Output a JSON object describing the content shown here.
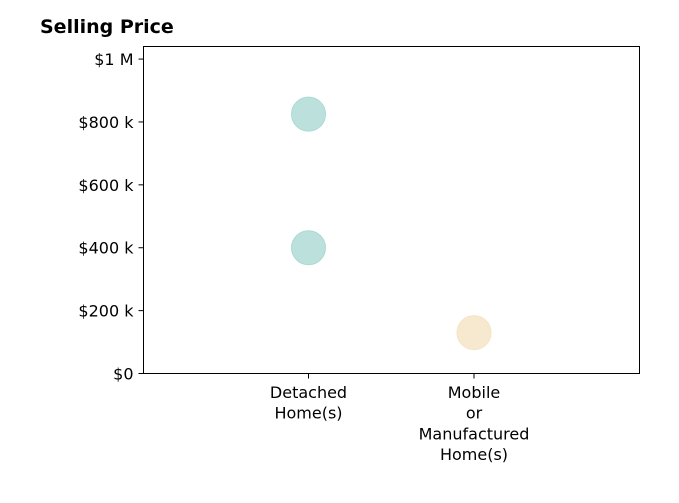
{
  "chart_data": {
    "type": "scatter",
    "title": "Selling Price",
    "xlabel": "",
    "ylabel": "",
    "categories": [
      [
        "Detached",
        "Home(s)"
      ],
      [
        "Mobile",
        "or",
        "Manufactured",
        "Home(s)"
      ]
    ],
    "y_ticks": [
      {
        "value": 0,
        "label": "$0"
      },
      {
        "value": 200000,
        "label": "$200 k"
      },
      {
        "value": 400000,
        "label": "$400 k"
      },
      {
        "value": 600000,
        "label": "$600 k"
      },
      {
        "value": 800000,
        "label": "$800 k"
      },
      {
        "value": 1000000,
        "label": "$1 M"
      }
    ],
    "ylim": [
      0,
      1040000
    ],
    "grid": false,
    "points": [
      {
        "category": 0,
        "y": 825000,
        "color": "#abd9d5"
      },
      {
        "category": 0,
        "y": 400000,
        "color": "#abd9d5"
      },
      {
        "category": 1,
        "y": 130000,
        "color": "#f5e4c3"
      }
    ],
    "colors": {
      "detached": "#abd9d5",
      "mobile": "#f5e4c3"
    }
  }
}
